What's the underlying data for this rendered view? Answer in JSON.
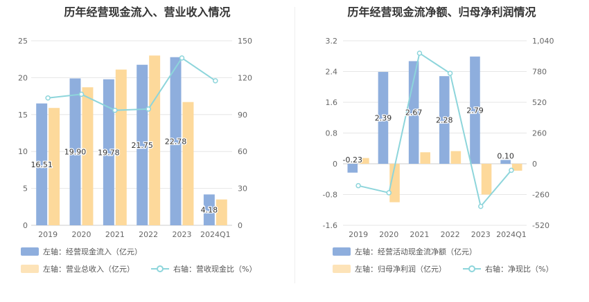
{
  "charts": [
    {
      "title": "历年经营现金流入、营业收入情况",
      "legend": [
        {
          "label": "左轴：经营现金流入（亿元）",
          "kind": "bar",
          "color": "#8eaedd"
        },
        {
          "label": "左轴：营业总收入（亿元）",
          "kind": "bar",
          "color": "#fdd99b"
        },
        {
          "label": "右轴：营收现金比（%）",
          "kind": "line",
          "color": "#8dd5db"
        }
      ]
    },
    {
      "title": "历年经营现金流净额、归母净利润情况",
      "legend": [
        {
          "label": "左轴：经营活动现金流净额（亿元）",
          "kind": "bar",
          "color": "#8eaedd"
        },
        {
          "label": "左轴：归母净利润（亿元）",
          "kind": "bar",
          "color": "#fdd99b"
        },
        {
          "label": "右轴：净现比（%）",
          "kind": "line",
          "color": "#8dd5db"
        }
      ]
    }
  ],
  "chart_data": [
    {
      "type": "bar",
      "title": "历年经营现金流入、营业收入情况",
      "categories": [
        "2019",
        "2020",
        "2021",
        "2022",
        "2023",
        "2024Q1"
      ],
      "left_axis": {
        "min": 0,
        "max": 25,
        "ticks": [
          "0",
          "5",
          "10",
          "15",
          "20",
          "25"
        ]
      },
      "right_axis": {
        "min": 0,
        "max": 150,
        "ticks": [
          "0",
          "30",
          "60",
          "90",
          "120",
          "150"
        ]
      },
      "series": [
        {
          "name": "经营现金流入（亿元）",
          "axis": "left",
          "kind": "bar",
          "color": "#8eaedd",
          "values": [
            16.51,
            19.9,
            19.78,
            21.75,
            22.78,
            4.18
          ],
          "labels": [
            "16.51",
            "19.90",
            "19.78",
            "21.75",
            "22.78",
            "4.18"
          ]
        },
        {
          "name": "营业总收入（亿元）",
          "axis": "left",
          "kind": "bar",
          "color": "#fdd99b",
          "values": [
            15.9,
            18.7,
            21.1,
            23.0,
            16.7,
            3.5
          ]
        },
        {
          "name": "营收现金比（%）",
          "axis": "right",
          "kind": "line",
          "color": "#8dd5db",
          "values": [
            103.5,
            106.5,
            93.5,
            94.5,
            136.0,
            117.5
          ]
        }
      ],
      "grid": true
    },
    {
      "type": "bar",
      "title": "历年经营现金流净额、归母净利润情况",
      "categories": [
        "2019",
        "2020",
        "2021",
        "2022",
        "2023",
        "2024Q1"
      ],
      "left_axis": {
        "min": -1.6,
        "max": 3.2,
        "ticks": [
          "-1.6",
          "-0.8",
          "0",
          "0.8",
          "1.6",
          "2.4",
          "3.2"
        ]
      },
      "right_axis": {
        "min": -520,
        "max": 1040,
        "ticks": [
          "-520",
          "-260",
          "0",
          "260",
          "520",
          "780",
          "1,040"
        ]
      },
      "series": [
        {
          "name": "经营活动现金流净额（亿元）",
          "axis": "left",
          "kind": "bar",
          "color": "#8eaedd",
          "values": [
            -0.23,
            2.39,
            2.67,
            2.28,
            2.79,
            0.1
          ],
          "labels": [
            "-0.23",
            "2.39",
            "2.67",
            "2.28",
            "2.79",
            "0.10"
          ]
        },
        {
          "name": "归母净利润（亿元）",
          "axis": "left",
          "kind": "bar",
          "color": "#fdd99b",
          "values": [
            0.15,
            -1.0,
            0.3,
            0.33,
            -0.8,
            -0.18
          ]
        },
        {
          "name": "净现比（%）",
          "axis": "right",
          "kind": "line",
          "color": "#8dd5db",
          "values": [
            -185,
            -245,
            935,
            765,
            -360,
            -55
          ]
        }
      ],
      "grid": true
    }
  ]
}
